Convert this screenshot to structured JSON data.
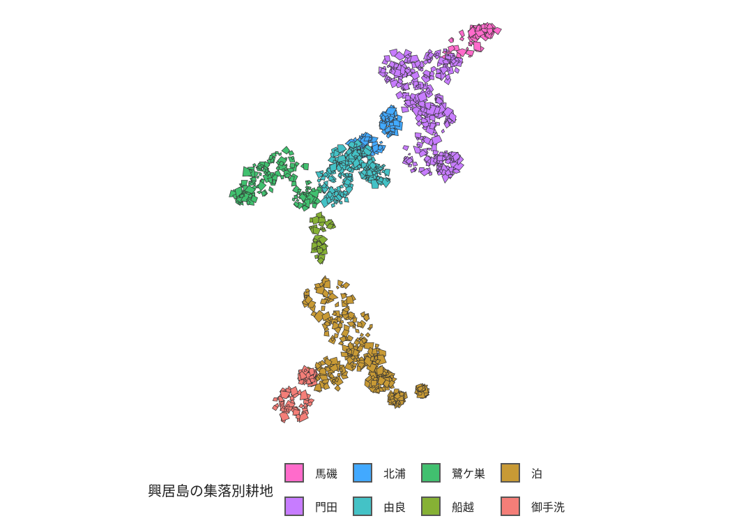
{
  "legend": {
    "title": "興居島の集落別耕地",
    "items": [
      {
        "label": "馬磯",
        "color": "#FF6BCB"
      },
      {
        "label": "門田",
        "color": "#C77CFF"
      },
      {
        "label": "北浦",
        "color": "#42A9FF"
      },
      {
        "label": "由良",
        "color": "#44C2C6"
      },
      {
        "label": "鷺ケ巣",
        "color": "#41C06F"
      },
      {
        "label": "船越",
        "color": "#86B135"
      },
      {
        "label": "泊",
        "color": "#C89A35"
      },
      {
        "label": "御手洗",
        "color": "#F47E78"
      }
    ]
  },
  "map": {
    "outline_color": "#333333"
  }
}
